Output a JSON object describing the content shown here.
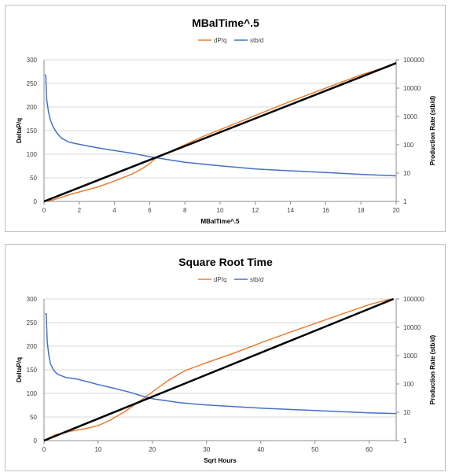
{
  "chart_data": [
    {
      "type": "line",
      "title": "MBalTime^.5",
      "xlabel": "MBalTime^.5",
      "ylabel": "DeltaP/q",
      "y2label": "Production Rate (stb/d)",
      "xlim": [
        0,
        20
      ],
      "ylim": [
        0,
        300
      ],
      "y2lim": [
        1,
        100000
      ],
      "y2scale": "log",
      "x_ticks": [
        "0",
        "2",
        "4",
        "6",
        "8",
        "10",
        "12",
        "14",
        "16",
        "18",
        "20"
      ],
      "y_ticks": [
        "0",
        "50",
        "100",
        "150",
        "200",
        "250",
        "300"
      ],
      "y2_ticks": [
        "1",
        "10",
        "100",
        "1000",
        "10000",
        "100000"
      ],
      "legend": [
        "dP/q",
        "stb/d"
      ],
      "legend_position": "top",
      "grid": true,
      "colors": {
        "dpq": "#ED7D31",
        "stbd": "#4472C4",
        "fit": "#000000"
      },
      "series": [
        {
          "name": "dP/q",
          "axis": "left",
          "color": "#ED7D31",
          "x": [
            0,
            0.5,
            1,
            1.5,
            2,
            3,
            4,
            5,
            5.6,
            6,
            6.3,
            7,
            8,
            9,
            10,
            12,
            14,
            16,
            18,
            19.8
          ],
          "y": [
            0,
            3,
            9,
            15,
            20,
            30,
            43,
            58,
            70,
            80,
            90,
            103,
            120,
            137,
            152,
            182,
            212,
            240,
            268,
            289
          ]
        },
        {
          "name": "stb/d",
          "axis": "right",
          "color": "#4472C4",
          "x": [
            0.05,
            0.1,
            0.15,
            0.25,
            0.35,
            0.5,
            0.75,
            1,
            1.4,
            1.8,
            2.5,
            3.5,
            5,
            6,
            7,
            8,
            10,
            12,
            14,
            16,
            18,
            20
          ],
          "y": [
            30000,
            28000,
            4000,
            1500,
            800,
            450,
            250,
            170,
            125,
            110,
            90,
            70,
            50,
            38,
            30,
            24,
            18,
            14,
            12,
            10.5,
            9,
            8
          ]
        },
        {
          "axis": "left",
          "color": "#000000",
          "x": [
            0,
            20
          ],
          "y": [
            0,
            293
          ]
        }
      ]
    },
    {
      "type": "line",
      "title": "Square Root Time",
      "xlabel": "Sqrt Hours",
      "ylabel": "DeltaP/q",
      "y2label": "Production Rate (stb/d)",
      "xlim": [
        0,
        65
      ],
      "ylim": [
        0,
        300
      ],
      "y2lim": [
        1,
        100000
      ],
      "y2scale": "log",
      "x_ticks": [
        "0",
        "10",
        "20",
        "30",
        "40",
        "50",
        "60"
      ],
      "y_ticks": [
        "0",
        "50",
        "100",
        "150",
        "200",
        "250",
        "300"
      ],
      "y2_ticks": [
        "1",
        "10",
        "100",
        "1000",
        "10000",
        "100000"
      ],
      "legend": [
        "dP/q",
        "stb/d"
      ],
      "legend_position": "top",
      "grid": true,
      "colors": {
        "dpq": "#ED7D31",
        "stbd": "#4472C4",
        "fit": "#000000"
      },
      "series": [
        {
          "name": "dP/q",
          "axis": "left",
          "color": "#ED7D31",
          "x": [
            0,
            2,
            5,
            8,
            10,
            12,
            15,
            17.5,
            20,
            23,
            26,
            30,
            35,
            40,
            45,
            50,
            55,
            60,
            64
          ],
          "y": [
            0,
            12,
            20,
            26,
            32,
            42,
            62,
            82,
            103,
            128,
            148,
            165,
            185,
            207,
            228,
            248,
            268,
            288,
            300
          ]
        },
        {
          "name": "stb/d",
          "axis": "right",
          "color": "#4472C4",
          "x": [
            0.2,
            0.4,
            0.6,
            0.9,
            1.2,
            1.8,
            2.5,
            4,
            6,
            8,
            10,
            13,
            16,
            18,
            20,
            25,
            30,
            40,
            50,
            60,
            65
          ],
          "y": [
            30000,
            30000,
            3000,
            1000,
            500,
            300,
            220,
            170,
            150,
            120,
            95,
            70,
            50,
            38,
            30,
            22,
            18,
            14,
            11.5,
            9.5,
            9
          ]
        },
        {
          "axis": "left",
          "color": "#000000",
          "x": [
            0,
            64.5
          ],
          "y": [
            0,
            300
          ]
        }
      ]
    }
  ]
}
